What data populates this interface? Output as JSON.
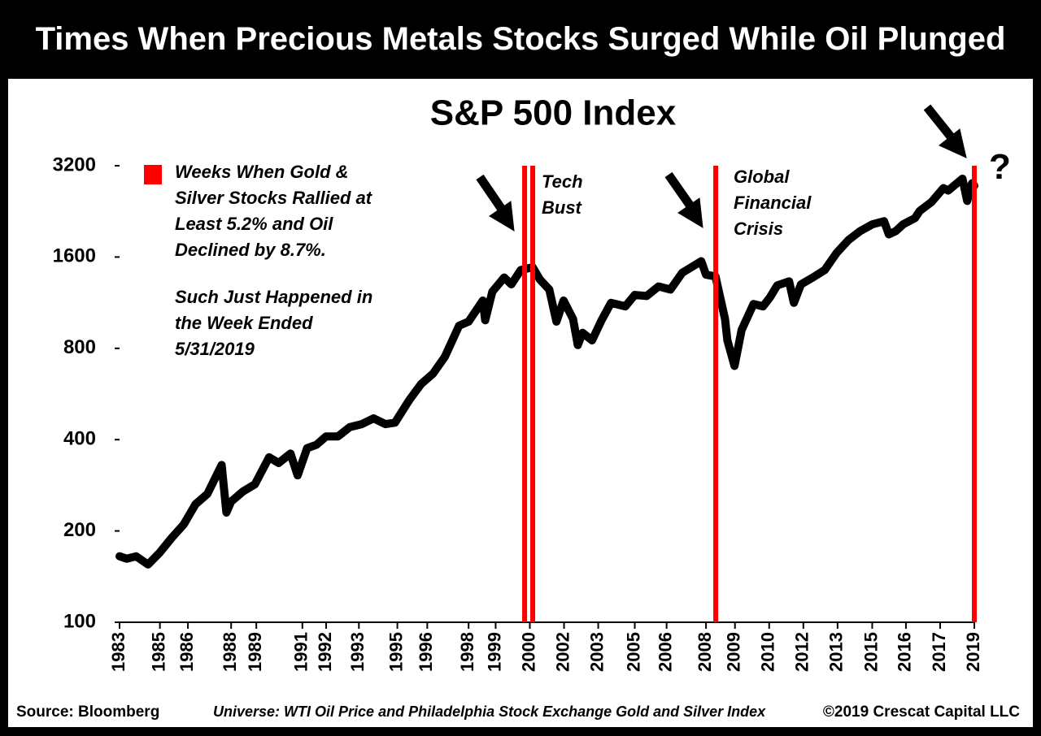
{
  "header": {
    "title": "Times When Precious Metals Stocks Surged While Oil Plunged"
  },
  "chart_data": {
    "type": "line",
    "title": "S&P 500 Index",
    "yscale": "log",
    "ylim": [
      100,
      3200
    ],
    "yticks": [
      100,
      200,
      400,
      800,
      1600,
      3200
    ],
    "xlim": [
      1983.3,
      2019.3
    ],
    "xticks": [
      {
        "value": 1983.3,
        "label": "1983"
      },
      {
        "value": 1985.0,
        "label": "1985"
      },
      {
        "value": 1986.18,
        "label": "1986"
      },
      {
        "value": 1988.0,
        "label": "1988"
      },
      {
        "value": 1989.06,
        "label": "1989"
      },
      {
        "value": 1991.0,
        "label": "1991"
      },
      {
        "value": 1992.0,
        "label": "1992"
      },
      {
        "value": 1993.38,
        "label": "1993"
      },
      {
        "value": 1995.0,
        "label": "1995"
      },
      {
        "value": 1996.26,
        "label": "1996"
      },
      {
        "value": 1998.0,
        "label": "1998"
      },
      {
        "value": 1999.14,
        "label": "1999"
      },
      {
        "value": 2000.58,
        "label": "2000"
      },
      {
        "value": 2002.02,
        "label": "2002"
      },
      {
        "value": 2003.46,
        "label": "2003"
      },
      {
        "value": 2005.0,
        "label": "2005"
      },
      {
        "value": 2006.34,
        "label": "2006"
      },
      {
        "value": 2008.0,
        "label": "2008"
      },
      {
        "value": 2009.22,
        "label": "2009"
      },
      {
        "value": 2010.66,
        "label": "2010"
      },
      {
        "value": 2012.1,
        "label": "2012"
      },
      {
        "value": 2013.54,
        "label": "2013"
      },
      {
        "value": 2015.0,
        "label": "2015"
      },
      {
        "value": 2016.42,
        "label": "2016"
      },
      {
        "value": 2017.86,
        "label": "2017"
      },
      {
        "value": 2019.3,
        "label": "2019"
      }
    ],
    "series": [
      {
        "color": "#000000",
        "x": [
          1983.3,
          1983.6,
          1984.0,
          1984.5,
          1985.0,
          1985.5,
          1986.0,
          1986.5,
          1987.0,
          1987.6,
          1987.8,
          1988.0,
          1988.5,
          1989.0,
          1989.6,
          1990.0,
          1990.5,
          1990.8,
          1991.2,
          1991.6,
          1992.0,
          1992.5,
          1993.0,
          1993.5,
          1994.0,
          1994.5,
          1994.9,
          1995.5,
          1996.0,
          1996.5,
          1997.0,
          1997.6,
          1998.0,
          1998.6,
          1998.7,
          1999.0,
          1999.5,
          1999.8,
          2000.2,
          2000.7,
          2001.0,
          2001.4,
          2001.7,
          2002.0,
          2002.4,
          2002.6,
          2002.8,
          2003.2,
          2003.6,
          2004.0,
          2004.6,
          2005.0,
          2005.5,
          2006.0,
          2006.5,
          2007.0,
          2007.5,
          2007.8,
          2008.0,
          2008.4,
          2008.8,
          2008.9,
          2009.2,
          2009.5,
          2010.0,
          2010.4,
          2010.7,
          2011.0,
          2011.5,
          2011.7,
          2012.0,
          2012.5,
          2013.0,
          2013.5,
          2014.0,
          2014.5,
          2015.0,
          2015.5,
          2015.7,
          2016.0,
          2016.3,
          2016.8,
          2017.0,
          2017.5,
          2018.0,
          2018.2,
          2018.8,
          2019.0,
          2019.2,
          2019.3
        ],
        "values": [
          165,
          162,
          165,
          155,
          170,
          190,
          210,
          245,
          265,
          330,
          230,
          250,
          270,
          285,
          350,
          335,
          360,
          305,
          375,
          385,
          410,
          410,
          440,
          450,
          470,
          450,
          455,
          540,
          610,
          660,
          750,
          950,
          980,
          1150,
          990,
          1230,
          1370,
          1300,
          1450,
          1480,
          1350,
          1250,
          980,
          1150,
          1000,
          820,
          900,
          850,
          990,
          1130,
          1100,
          1200,
          1190,
          1280,
          1250,
          1420,
          1500,
          1550,
          1400,
          1380,
          1000,
          850,
          700,
          920,
          1120,
          1100,
          1180,
          1290,
          1330,
          1130,
          1300,
          1370,
          1450,
          1650,
          1820,
          1950,
          2050,
          2100,
          1900,
          1950,
          2050,
          2150,
          2270,
          2430,
          2700,
          2650,
          2900,
          2450,
          2800,
          2750
        ]
      }
    ],
    "events": {
      "name": "Weeks When Gold & Silver Stocks Rallied at Least 5.2% and Oil Declined by 8.7%.",
      "color": "#ff0000",
      "x": [
        2000.36,
        2000.7,
        2008.41,
        2019.3
      ]
    },
    "annotations": [
      "Such Just Happened in the Week Ended 5/31/2019",
      "Tech Bust",
      "Global Financial Crisis",
      "?"
    ]
  },
  "footer": {
    "source": "Source: Bloomberg",
    "universe": "Universe: WTI Oil Price and Philadelphia Stock Exchange Gold and Silver Index",
    "copyright": "©2019 Crescat Capital LLC"
  }
}
